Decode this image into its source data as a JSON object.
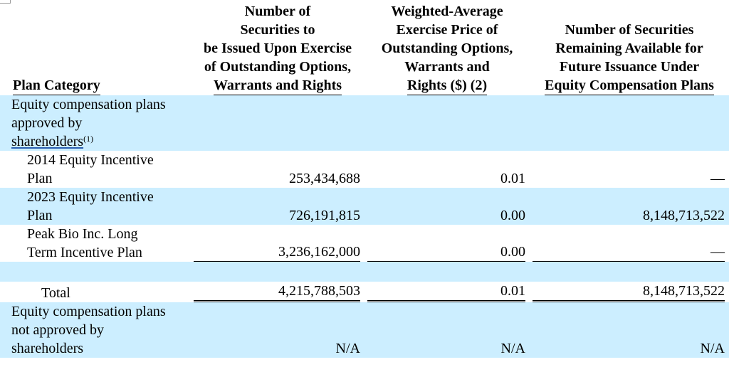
{
  "headers": {
    "plan_category": "Plan Category",
    "securities_to_be_issued": [
      "Number of",
      "Securities to",
      "be Issued Upon Exercise",
      "of Outstanding Options,",
      "Warrants and Rights"
    ],
    "weighted_average_price": [
      "Weighted-Average",
      "Exercise Price of",
      "Outstanding Options,",
      "Warrants and",
      "Rights ($) (2)"
    ],
    "remaining_available": [
      "Number of Securities",
      "Remaining Available for",
      "Future Issuance Under",
      "Equity Compensation Plans"
    ]
  },
  "section_approved": {
    "label_line1": "Equity compensation plans",
    "label_line2": "approved by",
    "label_line3": "shareholders",
    "footnote": "(1)"
  },
  "rows": [
    {
      "line1": "2014 Equity Incentive",
      "line2": "Plan",
      "issued": "253,434,688",
      "price": "0.01",
      "available": "—"
    },
    {
      "line1": "2023 Equity Incentive",
      "line2": "Plan",
      "issued": "726,191,815",
      "price": "0.00",
      "available": "8,148,713,522"
    },
    {
      "line1": "Peak Bio Inc. Long",
      "line2": "Term Incentive Plan",
      "issued": "3,236,162,000",
      "price": "0.00",
      "available": "—"
    }
  ],
  "total": {
    "label": "Total",
    "issued": "4,215,788,503",
    "price": "0.01",
    "available": "8,148,713,522"
  },
  "section_not_approved": {
    "label_line1": "Equity compensation plans",
    "label_line2": "not approved by",
    "label_line3": "shareholders",
    "issued": "N/A",
    "price": "N/A",
    "available": "N/A"
  },
  "colors": {
    "shade": "#cceeff",
    "link_underline": "#2b5fb0"
  }
}
